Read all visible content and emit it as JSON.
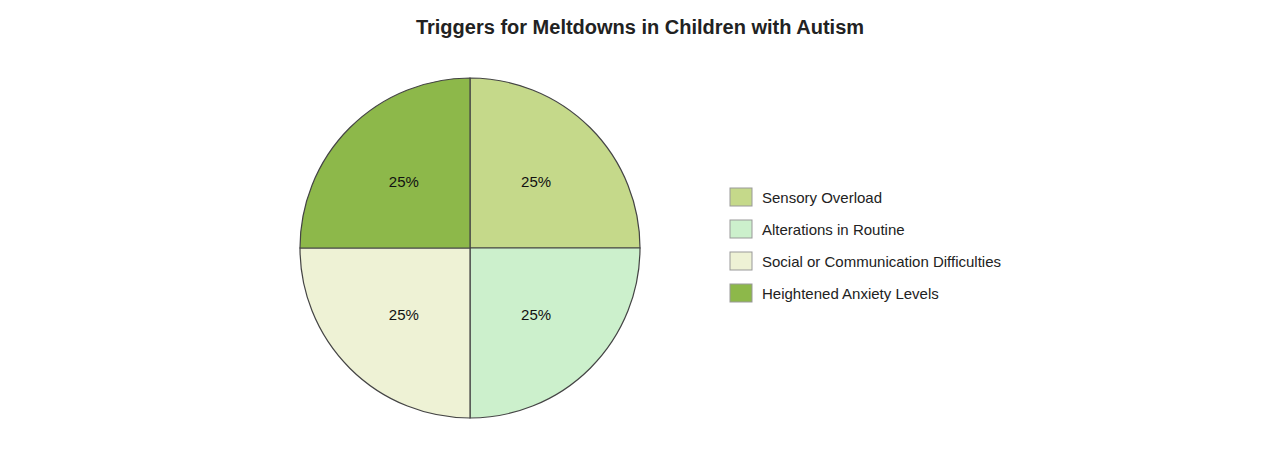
{
  "chart_data": {
    "type": "pie",
    "title": "Triggers for Meltdowns in Children with Autism",
    "categories": [
      "Sensory Overload",
      "Alterations in Routine",
      "Social or Communication Difficulties",
      "Heightened Anxiety Levels"
    ],
    "values": [
      25,
      25,
      25,
      25
    ],
    "value_labels": [
      "25%",
      "25%",
      "25%",
      "25%"
    ],
    "colors": [
      "#c5d98a",
      "#ccf0cc",
      "#eef2d5",
      "#8db84a"
    ],
    "data_labels": true,
    "legend": "right"
  }
}
